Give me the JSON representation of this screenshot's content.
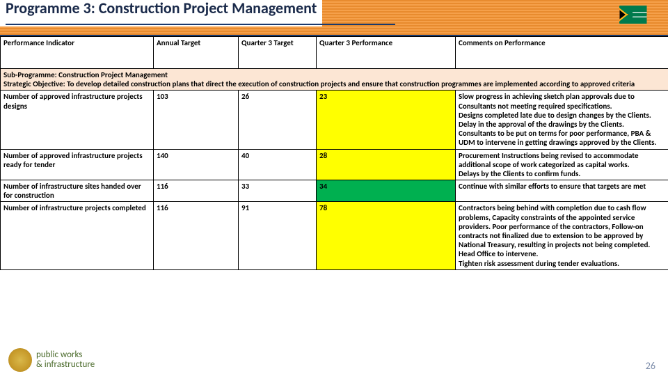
{
  "header": {
    "title": "Programme 3: Construction Project Management",
    "underline_color": "#1a3a6e",
    "band_colors": [
      "#e88b2e",
      "#f5a04a"
    ]
  },
  "page_number": "26",
  "table": {
    "columns": [
      "Performance Indicator",
      "Annual Target",
      "Quarter 3 Target",
      "Quarter 3 Performance",
      "Comments on Performance"
    ],
    "sub_programme": "Sub-Programme: Construction Project Management",
    "strategic_objective": "Strategic Objective: To develop detailed construction plans that direct the execution of construction projects and ensure that construction programmes are implemented according to approved criteria",
    "rows": [
      {
        "indicator": "Number of approved infrastructure projects designs",
        "annual_target": "103",
        "q3_target": "26",
        "q3_performance": "23",
        "perf_color": "yellow",
        "comments": "Slow progress in achieving sketch plan approvals due to Consultants not meeting required specifications.\nDesigns completed late due to design changes by the Clients.\nDelay in the approval of the drawings by the Clients.\nConsultants to be put on terms for poor performance, PBA & UDM to intervene in getting drawings approved by the Clients."
      },
      {
        "indicator": "Number of approved infrastructure projects ready for tender",
        "annual_target": "140",
        "q3_target": "40",
        "q3_performance": "28",
        "perf_color": "yellow",
        "comments": "Procurement Instructions being revised to accommodate additional scope of work categorized as capital works.\nDelays by the Clients to confirm funds."
      },
      {
        "indicator": "Number of infrastructure sites handed over for construction",
        "annual_target": "116",
        "q3_target": "33",
        "q3_performance": "34",
        "perf_color": "green",
        "comments": "Continue with similar efforts to ensure that targets are met"
      },
      {
        "indicator": "Number of infrastructure projects completed",
        "annual_target": "116",
        "q3_target": "91",
        "q3_performance": "78",
        "perf_color": "yellow",
        "comments": "Contractors being behind with completion due to cash flow problems, Capacity constraints of the appointed service providers. Poor performance of the contractors, Follow-on contracts not finalized due to extension to be approved by National Treasury, resulting in projects not being completed. Head Office to intervene.\nTighten risk assessment during tender evaluations."
      }
    ]
  },
  "footer": {
    "dept_line1": "public works",
    "dept_line2": "& infrastructure"
  }
}
